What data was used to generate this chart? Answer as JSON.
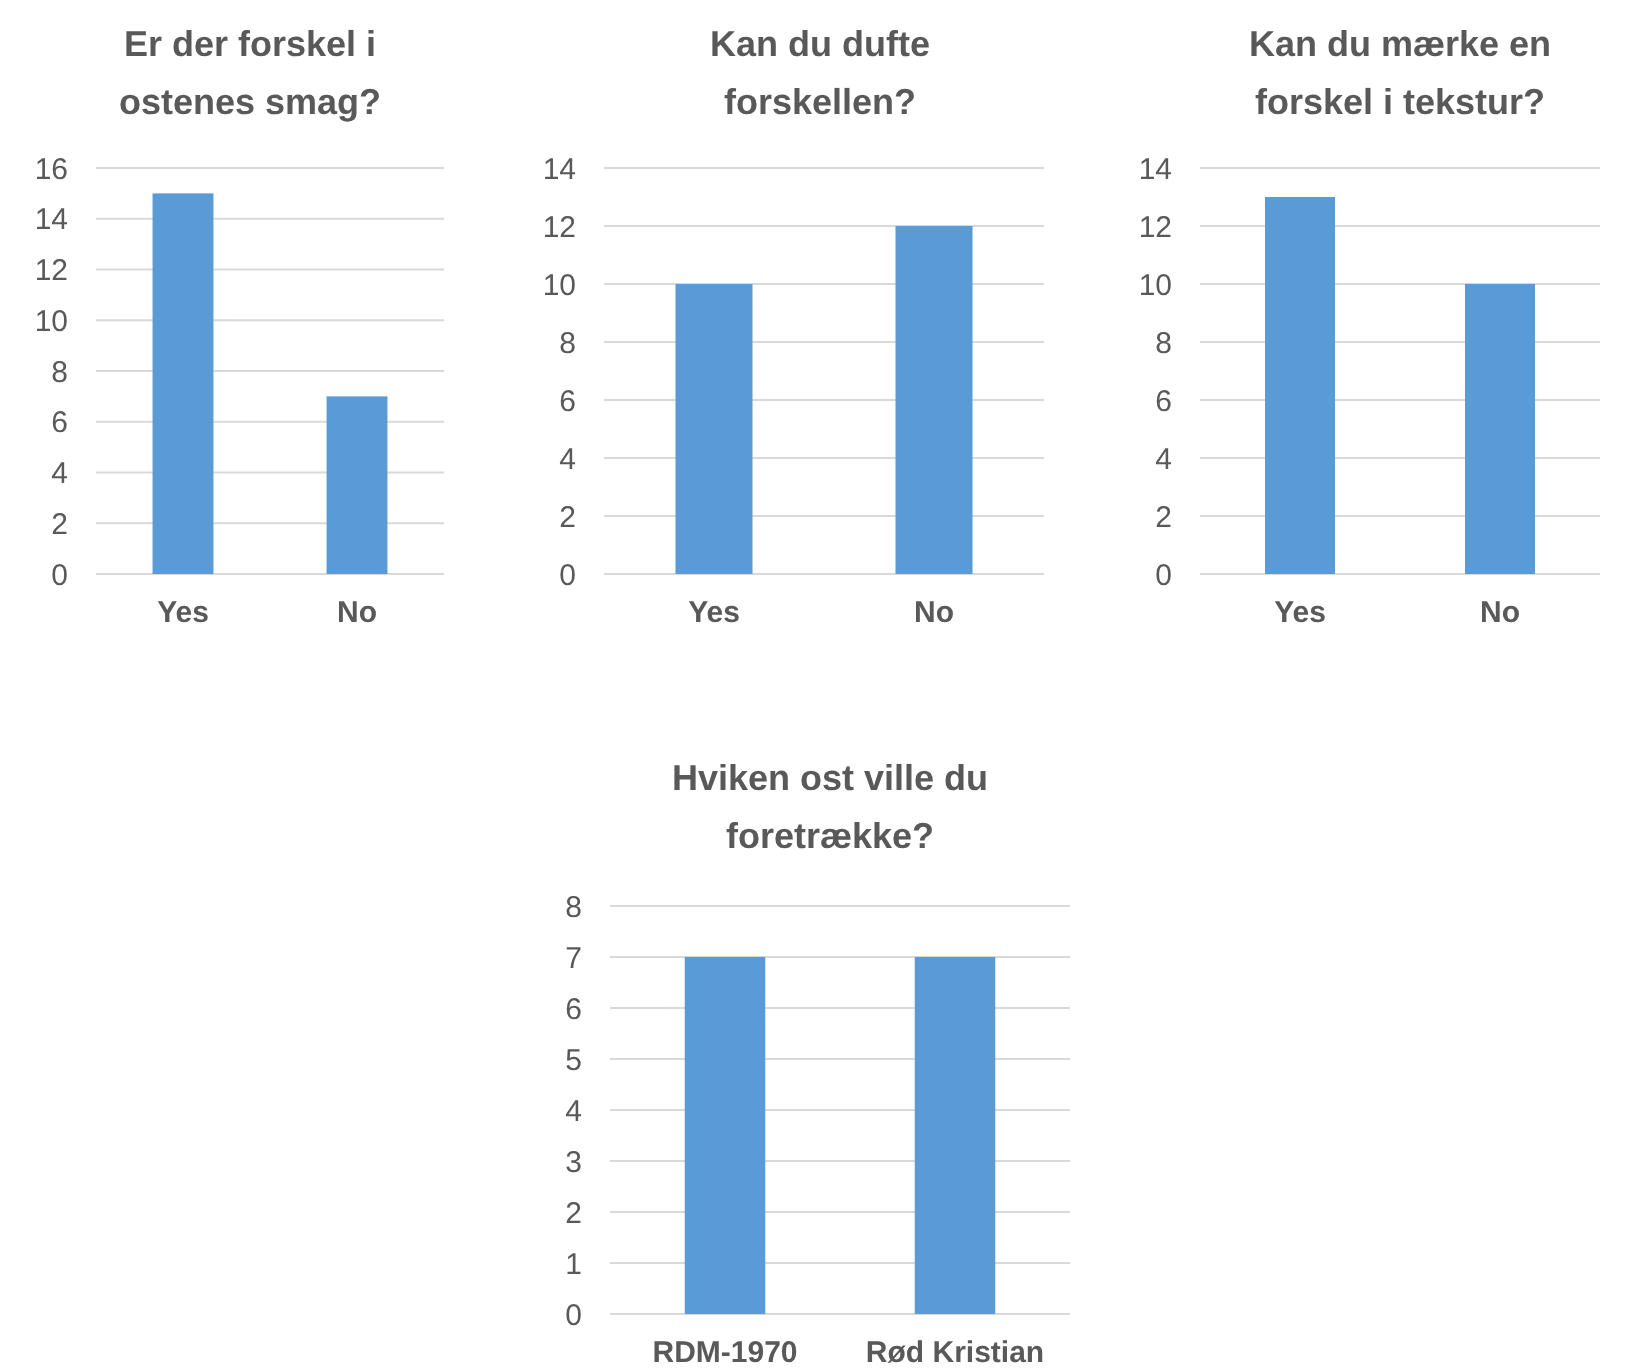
{
  "chart_data": [
    {
      "type": "bar",
      "title": "Er der forskel i ostenes smag?",
      "categories": [
        "Yes",
        "No"
      ],
      "values": [
        15,
        7
      ],
      "color": "#5b9bd5",
      "ylim": [
        0,
        16
      ],
      "yticks": [
        0,
        2,
        4,
        6,
        8,
        10,
        12,
        14,
        16
      ],
      "grid": "y"
    },
    {
      "type": "bar",
      "title": "Kan du dufte forskellen?",
      "categories": [
        "Yes",
        "No"
      ],
      "values": [
        10,
        12
      ],
      "color": "#5b9bd5",
      "ylim": [
        0,
        14
      ],
      "yticks": [
        0,
        2,
        4,
        6,
        8,
        10,
        12,
        14
      ],
      "grid": "y"
    },
    {
      "type": "bar",
      "title": "Kan du mærke en forskel i tekstur?",
      "categories": [
        "Yes",
        "No"
      ],
      "values": [
        13,
        10
      ],
      "color": "#5b9bd5",
      "ylim": [
        0,
        14
      ],
      "yticks": [
        0,
        2,
        4,
        6,
        8,
        10,
        12,
        14
      ],
      "grid": "y"
    },
    {
      "type": "bar",
      "title": "Hviken ost ville du foretrække?",
      "categories": [
        "RDM-1970",
        "Rød Kristian"
      ],
      "values": [
        7,
        7
      ],
      "color": "#5b9bd5",
      "ylim": [
        0,
        8
      ],
      "yticks": [
        0,
        1,
        2,
        3,
        4,
        5,
        6,
        7,
        8
      ],
      "grid": "y"
    }
  ]
}
